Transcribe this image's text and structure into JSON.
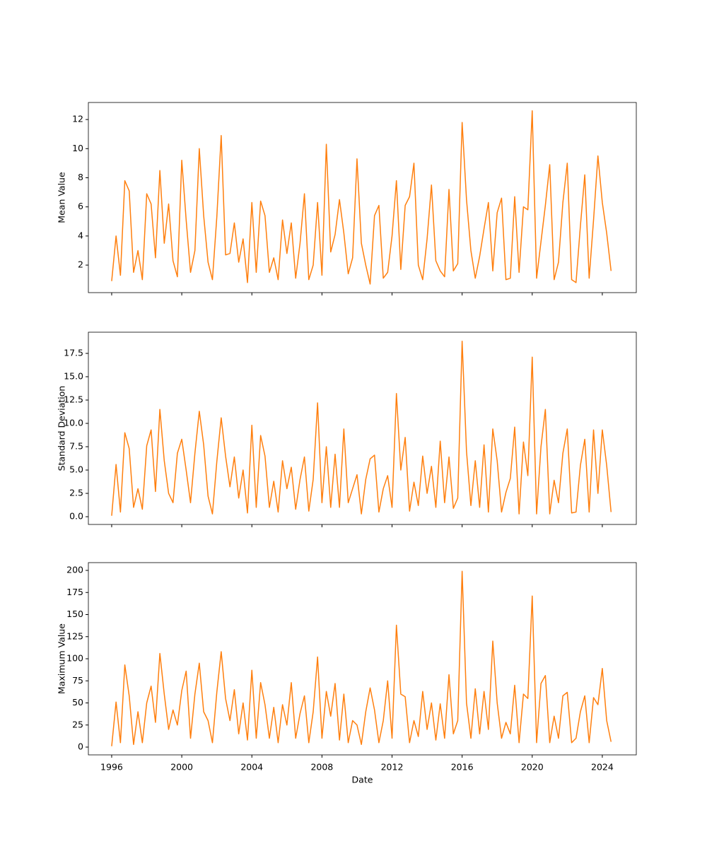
{
  "chart_data": [
    {
      "type": "line",
      "ylabel": "Mean Value",
      "color": "#ff7f0e",
      "x": [
        1996,
        1996.25,
        1996.5,
        1996.75,
        1997,
        1997.25,
        1997.5,
        1997.75,
        1998,
        1998.25,
        1998.5,
        1998.75,
        1999,
        1999.25,
        1999.5,
        1999.75,
        2000,
        2000.25,
        2000.5,
        2000.75,
        2001,
        2001.25,
        2001.5,
        2001.75,
        2002,
        2002.25,
        2002.5,
        2002.75,
        2003,
        2003.25,
        2003.5,
        2003.75,
        2004,
        2004.25,
        2004.5,
        2004.75,
        2005,
        2005.25,
        2005.5,
        2005.75,
        2006,
        2006.25,
        2006.5,
        2006.75,
        2007,
        2007.25,
        2007.5,
        2007.75,
        2008,
        2008.25,
        2008.5,
        2008.75,
        2009,
        2009.25,
        2009.5,
        2009.75,
        2010,
        2010.25,
        2010.5,
        2010.75,
        2011,
        2011.25,
        2011.5,
        2011.75,
        2012,
        2012.25,
        2012.5,
        2012.75,
        2013,
        2013.25,
        2013.5,
        2013.75,
        2014,
        2014.25,
        2014.5,
        2014.75,
        2015,
        2015.25,
        2015.5,
        2015.75,
        2016,
        2016.25,
        2016.5,
        2016.75,
        2017,
        2017.25,
        2017.5,
        2017.75,
        2018,
        2018.25,
        2018.5,
        2018.75,
        2019,
        2019.25,
        2019.5,
        2019.75,
        2020,
        2020.25,
        2020.5,
        2020.75,
        2021,
        2021.25,
        2021.5,
        2021.75,
        2022,
        2022.25,
        2022.5,
        2022.75,
        2023,
        2023.25,
        2023.5,
        2023.75,
        2024,
        2024.25,
        2024.5
      ],
      "values": [
        0.9,
        4.0,
        1.3,
        7.8,
        7.1,
        1.5,
        3.0,
        1.0,
        6.9,
        6.2,
        2.5,
        8.5,
        3.5,
        6.2,
        2.3,
        1.2,
        9.2,
        5.1,
        1.5,
        3.0,
        10.0,
        5.4,
        2.2,
        1.0,
        5.3,
        10.9,
        2.7,
        2.8,
        4.9,
        2.2,
        3.8,
        0.8,
        6.3,
        1.5,
        6.4,
        5.4,
        1.5,
        2.5,
        1.0,
        5.1,
        2.8,
        4.9,
        1.1,
        3.5,
        6.9,
        1.0,
        2.0,
        6.3,
        1.3,
        10.3,
        2.9,
        4.1,
        6.5,
        4.2,
        1.4,
        2.5,
        9.3,
        3.5,
        2.0,
        0.7,
        5.4,
        6.1,
        1.1,
        1.5,
        4.0,
        7.8,
        1.7,
        6.1,
        6.7,
        9.0,
        2.0,
        1.0,
        3.8,
        7.5,
        2.3,
        1.6,
        1.2,
        7.2,
        1.6,
        2.1,
        11.8,
        6.5,
        3.0,
        1.1,
        2.6,
        4.5,
        6.3,
        1.6,
        5.6,
        6.6,
        1.0,
        1.1,
        6.7,
        1.5,
        6.0,
        5.8,
        12.6,
        1.1,
        3.6,
        6.1,
        8.9,
        1.0,
        2.2,
        6.3,
        9.0,
        1.0,
        0.8,
        4.7,
        8.2,
        1.1,
        5.1,
        9.5,
        6.3,
        4.2,
        1.6
      ],
      "xlim": [
        1994.67,
        2025.94
      ],
      "xticks": [
        1996,
        2000,
        2004,
        2008,
        2012,
        2016,
        2020,
        2024
      ],
      "ylim": [
        0.11,
        13.17
      ],
      "yticks": [
        2,
        4,
        6,
        8,
        10,
        12
      ]
    },
    {
      "type": "line",
      "ylabel": "Standard Deviation",
      "color": "#ff7f0e",
      "x": [
        1996,
        1996.25,
        1996.5,
        1996.75,
        1997,
        1997.25,
        1997.5,
        1997.75,
        1998,
        1998.25,
        1998.5,
        1998.75,
        1999,
        1999.25,
        1999.5,
        1999.75,
        2000,
        2000.25,
        2000.5,
        2000.75,
        2001,
        2001.25,
        2001.5,
        2001.75,
        2002,
        2002.25,
        2002.5,
        2002.75,
        2003,
        2003.25,
        2003.5,
        2003.75,
        2004,
        2004.25,
        2004.5,
        2004.75,
        2005,
        2005.25,
        2005.5,
        2005.75,
        2006,
        2006.25,
        2006.5,
        2006.75,
        2007,
        2007.25,
        2007.5,
        2007.75,
        2008,
        2008.25,
        2008.5,
        2008.75,
        2009,
        2009.25,
        2009.5,
        2009.75,
        2010,
        2010.25,
        2010.5,
        2010.75,
        2011,
        2011.25,
        2011.5,
        2011.75,
        2012,
        2012.25,
        2012.5,
        2012.75,
        2013,
        2013.25,
        2013.5,
        2013.75,
        2014,
        2014.25,
        2014.5,
        2014.75,
        2015,
        2015.25,
        2015.5,
        2015.75,
        2016,
        2016.25,
        2016.5,
        2016.75,
        2017,
        2017.25,
        2017.5,
        2017.75,
        2018,
        2018.25,
        2018.5,
        2018.75,
        2019,
        2019.25,
        2019.5,
        2019.75,
        2020,
        2020.25,
        2020.5,
        2020.75,
        2021,
        2021.25,
        2021.5,
        2021.75,
        2022,
        2022.25,
        2022.5,
        2022.75,
        2023,
        2023.25,
        2023.5,
        2023.75,
        2024,
        2024.25,
        2024.5
      ],
      "values": [
        0.1,
        5.6,
        0.5,
        9.0,
        7.3,
        1.0,
        3.0,
        0.8,
        7.6,
        9.3,
        2.7,
        11.5,
        6.0,
        2.5,
        1.5,
        6.8,
        8.3,
        5.0,
        1.5,
        6.8,
        11.3,
        7.7,
        2.2,
        0.3,
        5.9,
        10.6,
        6.5,
        3.2,
        6.4,
        2.0,
        5.0,
        0.4,
        9.8,
        1.0,
        8.7,
        6.5,
        1.0,
        3.8,
        0.5,
        6.0,
        3.0,
        5.3,
        0.8,
        4.0,
        6.4,
        0.6,
        4.0,
        12.2,
        1.5,
        7.5,
        1.0,
        6.7,
        1.0,
        9.4,
        1.5,
        3.0,
        4.5,
        0.3,
        4.0,
        6.2,
        6.6,
        0.5,
        3.0,
        4.4,
        1.0,
        13.2,
        5.0,
        8.5,
        0.6,
        3.7,
        1.2,
        6.5,
        2.5,
        5.4,
        1.0,
        8.1,
        1.5,
        6.4,
        0.9,
        2.0,
        18.8,
        7.0,
        1.2,
        6.0,
        1.0,
        7.7,
        0.5,
        9.4,
        6.0,
        0.5,
        2.6,
        4.1,
        9.6,
        0.3,
        8.0,
        4.4,
        17.1,
        0.3,
        7.5,
        11.5,
        0.3,
        3.9,
        1.5,
        6.8,
        9.4,
        0.4,
        0.5,
        5.5,
        8.3,
        0.5,
        9.3,
        2.5,
        9.3,
        5.5,
        0.5
      ],
      "xlim": [
        1994.67,
        2025.94
      ],
      "xticks": [
        1996,
        2000,
        2004,
        2008,
        2012,
        2016,
        2020,
        2024
      ],
      "ylim": [
        -0.83,
        19.77
      ],
      "yticks": [
        {
          "value": 0,
          "label": "0.0"
        },
        {
          "value": 2.5,
          "label": "2.5"
        },
        {
          "value": 5,
          "label": "5.0"
        },
        {
          "value": 7.5,
          "label": "7.5"
        },
        {
          "value": 10,
          "label": "10.0"
        },
        {
          "value": 12.5,
          "label": "12.5"
        },
        {
          "value": 15,
          "label": "15.0"
        },
        {
          "value": 17.5,
          "label": "17.5"
        }
      ]
    },
    {
      "type": "line",
      "ylabel": "Maximum Value",
      "xlabel": "Date",
      "color": "#ff7f0e",
      "x": [
        1996,
        1996.25,
        1996.5,
        1996.75,
        1997,
        1997.25,
        1997.5,
        1997.75,
        1998,
        1998.25,
        1998.5,
        1998.75,
        1999,
        1999.25,
        1999.5,
        1999.75,
        2000,
        2000.25,
        2000.5,
        2000.75,
        2001,
        2001.25,
        2001.5,
        2001.75,
        2002,
        2002.25,
        2002.5,
        2002.75,
        2003,
        2003.25,
        2003.5,
        2003.75,
        2004,
        2004.25,
        2004.5,
        2004.75,
        2005,
        2005.25,
        2005.5,
        2005.75,
        2006,
        2006.25,
        2006.5,
        2006.75,
        2007,
        2007.25,
        2007.5,
        2007.75,
        2008,
        2008.25,
        2008.5,
        2008.75,
        2009,
        2009.25,
        2009.5,
        2009.75,
        2010,
        2010.25,
        2010.5,
        2010.75,
        2011,
        2011.25,
        2011.5,
        2011.75,
        2012,
        2012.25,
        2012.5,
        2012.75,
        2013,
        2013.25,
        2013.5,
        2013.75,
        2014,
        2014.25,
        2014.5,
        2014.75,
        2015,
        2015.25,
        2015.5,
        2015.75,
        2016,
        2016.25,
        2016.5,
        2016.75,
        2017,
        2017.25,
        2017.5,
        2017.75,
        2018,
        2018.25,
        2018.5,
        2018.75,
        2019,
        2019.25,
        2019.5,
        2019.75,
        2020,
        2020.25,
        2020.5,
        2020.75,
        2021,
        2021.25,
        2021.5,
        2021.75,
        2022,
        2022.25,
        2022.5,
        2022.75,
        2023,
        2023.25,
        2023.5,
        2023.75,
        2024,
        2024.25,
        2024.5
      ],
      "values": [
        1,
        51,
        5,
        93,
        58,
        3,
        40,
        5,
        50,
        69,
        28,
        106,
        60,
        20,
        42,
        25,
        64,
        86,
        10,
        60,
        95,
        40,
        30,
        5,
        62,
        108,
        55,
        30,
        65,
        15,
        50,
        8,
        87,
        10,
        73,
        48,
        10,
        45,
        5,
        48,
        25,
        73,
        10,
        38,
        58,
        5,
        40,
        102,
        10,
        63,
        35,
        72,
        8,
        60,
        5,
        30,
        25,
        3,
        40,
        67,
        42,
        5,
        30,
        75,
        10,
        138,
        60,
        57,
        5,
        30,
        12,
        63,
        20,
        50,
        8,
        49,
        10,
        82,
        15,
        30,
        199,
        50,
        10,
        66,
        15,
        63,
        20,
        120,
        50,
        10,
        28,
        15,
        70,
        5,
        60,
        55,
        171,
        5,
        72,
        81,
        5,
        35,
        10,
        58,
        62,
        5,
        10,
        40,
        58,
        5,
        56,
        48,
        89,
        30,
        6
      ],
      "xlim": [
        1994.67,
        2025.94
      ],
      "xticks": [
        1996,
        2000,
        2004,
        2008,
        2012,
        2016,
        2020,
        2024
      ],
      "ylim": [
        -8.8,
        208.8
      ],
      "yticks": [
        0,
        25,
        50,
        75,
        100,
        125,
        150,
        175,
        200
      ]
    }
  ]
}
